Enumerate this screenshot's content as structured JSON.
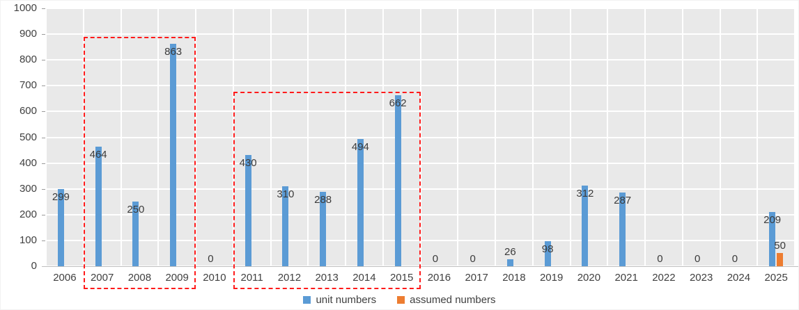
{
  "chart_data": {
    "type": "bar",
    "title": "",
    "categories": [
      "2006",
      "2007",
      "2008",
      "2009",
      "2010",
      "2011",
      "2012",
      "2013",
      "2014",
      "2015",
      "2016",
      "2017",
      "2018",
      "2019",
      "2020",
      "2021",
      "2022",
      "2023",
      "2024",
      "2025"
    ],
    "series": [
      {
        "name": "unit numbers",
        "color": "#5B9BD5",
        "values": [
          299,
          464,
          250,
          863,
          0,
          430,
          310,
          288,
          494,
          662,
          0,
          0,
          26,
          98,
          312,
          287,
          0,
          0,
          0,
          209
        ]
      },
      {
        "name": "assumed numbers",
        "color": "#ED7D31",
        "values": [
          null,
          null,
          null,
          null,
          null,
          null,
          null,
          null,
          null,
          null,
          null,
          null,
          null,
          null,
          null,
          null,
          null,
          null,
          null,
          50
        ]
      }
    ],
    "xlabel": "",
    "ylabel": "",
    "ylim": [
      0,
      1000
    ],
    "ytick_step": 100,
    "ytick_labels": [
      "0",
      "100",
      "200",
      "300",
      "400",
      "500",
      "600",
      "700",
      "800",
      "900",
      "1000"
    ],
    "grid": true,
    "plot_background": "#E9E9E9",
    "gridline_color": "#FFFFFF",
    "axis_color": "#BFBFBF",
    "label_color": "#3B3B3B",
    "legend_position": "bottom",
    "annotations": [
      {
        "name": "red-dashed-highlight-2007-2009",
        "style": "red-dashed-box",
        "color": "#FF1A1A",
        "from": "2007",
        "to": "2009",
        "top_value": 890
      },
      {
        "name": "red-dashed-highlight-2011-2015",
        "style": "red-dashed-box",
        "color": "#FF1A1A",
        "from": "2011",
        "to": "2015",
        "top_value": 676
      }
    ]
  }
}
